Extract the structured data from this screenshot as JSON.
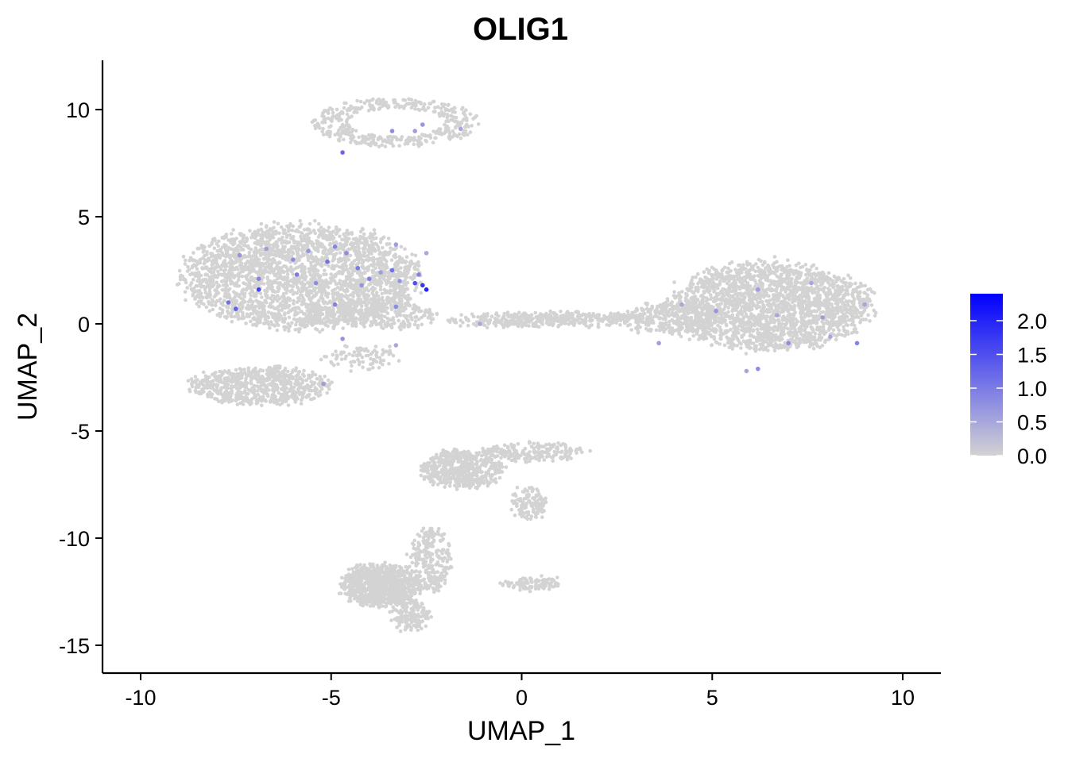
{
  "chart_data": {
    "type": "scatter",
    "title": "OLIG1",
    "xlabel": "UMAP_1",
    "ylabel": "UMAP_2",
    "xlim": [
      -11,
      11
    ],
    "ylim": [
      -16.3,
      12.3
    ],
    "x_ticks": [
      -10,
      -5,
      0,
      5,
      10
    ],
    "y_ticks": [
      10,
      5,
      0,
      -5,
      -10,
      -15
    ],
    "x_tick_labels": [
      "-10",
      "-5",
      "0",
      "5",
      "10"
    ],
    "y_tick_labels": [
      "10",
      "5",
      "0",
      "-5",
      "-10",
      "-15"
    ],
    "grid": false,
    "legend": {
      "placement": "right",
      "type": "colorbar",
      "range": [
        0,
        2.4
      ],
      "ticks": [
        2.0,
        1.5,
        1.0,
        0.5,
        0.0
      ],
      "tick_labels": [
        "2.0",
        "1.5",
        "1.0",
        "0.5",
        "0.0"
      ],
      "low_color": "#d3d3d3",
      "high_color": "#0000ff"
    },
    "point_color_low": "#d3d3d3",
    "point_color_high": "#0000ff",
    "clusters": [
      {
        "cx": -3.3,
        "cy": 9.4,
        "rx": 2.1,
        "ry": 1.1,
        "n": 420,
        "shape": "ring"
      },
      {
        "cx": -5.8,
        "cy": 2.2,
        "rx": 3.2,
        "ry": 2.5,
        "n": 2600
      },
      {
        "cx": -3.9,
        "cy": 0.4,
        "rx": 1.8,
        "ry": 0.7,
        "n": 350
      },
      {
        "cx": -6.9,
        "cy": -2.9,
        "rx": 1.9,
        "ry": 0.9,
        "n": 700
      },
      {
        "cx": -4.2,
        "cy": -1.6,
        "rx": 1.0,
        "ry": 0.6,
        "n": 90
      },
      {
        "cx": 0.8,
        "cy": 0.2,
        "rx": 2.8,
        "ry": 0.35,
        "n": 420
      },
      {
        "cx": 6.5,
        "cy": 0.8,
        "rx": 2.8,
        "ry": 2.1,
        "n": 2200
      },
      {
        "cx": 3.9,
        "cy": 0.2,
        "rx": 1.3,
        "ry": 0.8,
        "n": 250
      },
      {
        "cx": -1.6,
        "cy": -6.8,
        "rx": 1.1,
        "ry": 0.9,
        "n": 500
      },
      {
        "cx": 0.3,
        "cy": -6.0,
        "rx": 1.4,
        "ry": 0.45,
        "n": 200
      },
      {
        "cx": 0.2,
        "cy": -8.4,
        "rx": 0.45,
        "ry": 0.8,
        "n": 120
      },
      {
        "cx": -3.7,
        "cy": -12.2,
        "rx": 1.1,
        "ry": 1.0,
        "n": 900
      },
      {
        "cx": -2.4,
        "cy": -11.0,
        "rx": 0.5,
        "ry": 1.6,
        "n": 250
      },
      {
        "cx": -2.9,
        "cy": -13.6,
        "rx": 0.5,
        "ry": 0.8,
        "n": 150
      },
      {
        "cx": 0.3,
        "cy": -12.1,
        "rx": 0.8,
        "ry": 0.3,
        "n": 110
      }
    ],
    "expressing_points": [
      {
        "x": -3.4,
        "y": 9.0,
        "v": 0.8
      },
      {
        "x": -2.8,
        "y": 9.0,
        "v": 0.6
      },
      {
        "x": -2.6,
        "y": 9.3,
        "v": 0.7
      },
      {
        "x": -1.6,
        "y": 9.1,
        "v": 0.5
      },
      {
        "x": -4.7,
        "y": 8.0,
        "v": 1.2
      },
      {
        "x": -4.9,
        "y": 3.6,
        "v": 0.9
      },
      {
        "x": -7.4,
        "y": 3.2,
        "v": 0.7
      },
      {
        "x": -7.7,
        "y": 1.0,
        "v": 1.1
      },
      {
        "x": -7.5,
        "y": 0.7,
        "v": 1.3
      },
      {
        "x": -6.9,
        "y": 2.1,
        "v": 0.9
      },
      {
        "x": -6.9,
        "y": 1.6,
        "v": 1.6
      },
      {
        "x": -6.7,
        "y": 3.5,
        "v": 0.6
      },
      {
        "x": -6.0,
        "y": 3.0,
        "v": 0.8
      },
      {
        "x": -5.9,
        "y": 2.3,
        "v": 1.0
      },
      {
        "x": -5.6,
        "y": 3.4,
        "v": 0.7
      },
      {
        "x": -5.4,
        "y": 1.9,
        "v": 0.8
      },
      {
        "x": -5.1,
        "y": 2.9,
        "v": 1.1
      },
      {
        "x": -4.9,
        "y": 0.9,
        "v": 0.9
      },
      {
        "x": -4.6,
        "y": 3.3,
        "v": 0.8
      },
      {
        "x": -4.3,
        "y": 2.6,
        "v": 1.0
      },
      {
        "x": -4.2,
        "y": 1.8,
        "v": 0.7
      },
      {
        "x": -4.0,
        "y": 2.1,
        "v": 0.9
      },
      {
        "x": -3.7,
        "y": 2.4,
        "v": 0.6
      },
      {
        "x": -3.4,
        "y": 2.5,
        "v": 1.1
      },
      {
        "x": -3.3,
        "y": 0.8,
        "v": 0.8
      },
      {
        "x": -3.2,
        "y": 2.0,
        "v": 0.7
      },
      {
        "x": -2.8,
        "y": 1.9,
        "v": 1.5
      },
      {
        "x": -2.7,
        "y": 2.3,
        "v": 0.9
      },
      {
        "x": -2.6,
        "y": 1.8,
        "v": 1.8
      },
      {
        "x": -2.5,
        "y": 1.6,
        "v": 2.0
      },
      {
        "x": -2.5,
        "y": 3.3,
        "v": 0.5
      },
      {
        "x": -3.3,
        "y": 3.7,
        "v": 0.6
      },
      {
        "x": -4.7,
        "y": -0.7,
        "v": 0.7
      },
      {
        "x": -3.3,
        "y": -1.0,
        "v": 0.5
      },
      {
        "x": -5.2,
        "y": -2.8,
        "v": 0.6
      },
      {
        "x": -1.1,
        "y": 0.0,
        "v": 0.5
      },
      {
        "x": 5.1,
        "y": 0.6,
        "v": 0.7
      },
      {
        "x": 6.2,
        "y": 1.6,
        "v": 0.6
      },
      {
        "x": 6.7,
        "y": 0.4,
        "v": 0.5
      },
      {
        "x": 7.0,
        "y": -0.9,
        "v": 0.8
      },
      {
        "x": 7.6,
        "y": 1.9,
        "v": 0.5
      },
      {
        "x": 7.9,
        "y": 0.3,
        "v": 0.6
      },
      {
        "x": 8.1,
        "y": -0.6,
        "v": 0.5
      },
      {
        "x": 8.8,
        "y": -0.9,
        "v": 0.9
      },
      {
        "x": 9.0,
        "y": 0.9,
        "v": 0.5
      },
      {
        "x": 6.2,
        "y": -2.1,
        "v": 0.8
      },
      {
        "x": 5.9,
        "y": -2.2,
        "v": 0.5
      },
      {
        "x": 3.6,
        "y": -0.9,
        "v": 0.6
      },
      {
        "x": 4.2,
        "y": 0.9,
        "v": 0.5
      }
    ]
  }
}
